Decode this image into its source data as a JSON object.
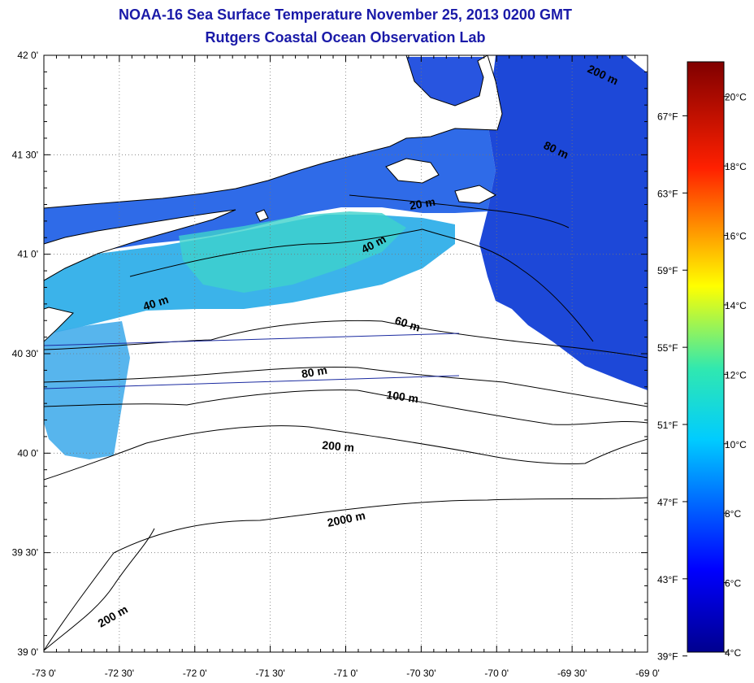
{
  "title": "NOAA-16 Sea Surface Temperature November 25, 2013 0200 GMT",
  "subtitle": "Rutgers Coastal Ocean Observation Lab",
  "map": {
    "lon_range": [
      -73.0,
      -69.0
    ],
    "lat_range": [
      39.0,
      42.0
    ],
    "lon_ticks": [
      {
        "value": -73.0,
        "label": "-73 0'"
      },
      {
        "value": -72.5,
        "label": "-72 30'"
      },
      {
        "value": -72.0,
        "label": "-72 0'"
      },
      {
        "value": -71.5,
        "label": "-71 30'"
      },
      {
        "value": -71.0,
        "label": "-71 0'"
      },
      {
        "value": -70.5,
        "label": "-70 30'"
      },
      {
        "value": -70.0,
        "label": "-70 0'"
      },
      {
        "value": -69.5,
        "label": "-69 30'"
      },
      {
        "value": -69.0,
        "label": "-69 0'"
      }
    ],
    "lat_ticks": [
      {
        "value": 42.0,
        "label": "42 0'"
      },
      {
        "value": 41.5,
        "label": "41 30'"
      },
      {
        "value": 41.0,
        "label": "41 0'"
      },
      {
        "value": 40.5,
        "label": "40 30'"
      },
      {
        "value": 40.0,
        "label": "40 0'"
      },
      {
        "value": 39.5,
        "label": "39 30'"
      },
      {
        "value": 39.0,
        "label": "39 0'"
      }
    ],
    "grid": "dotted",
    "contour_labels": [
      "20 m",
      "40 m",
      "40 m",
      "60 m",
      "80 m",
      "80 m",
      "100 m",
      "200 m",
      "200 m",
      "2000 m",
      "200 m"
    ]
  },
  "colorbar": {
    "range_c": [
      4,
      21
    ],
    "celsius_ticks": [
      {
        "value": 20,
        "label": "20°C"
      },
      {
        "value": 18,
        "label": "18°C"
      },
      {
        "value": 16,
        "label": "16°C"
      },
      {
        "value": 14,
        "label": "14°C"
      },
      {
        "value": 12,
        "label": "12°C"
      },
      {
        "value": 10,
        "label": "10°C"
      },
      {
        "value": 8,
        "label": "8°C"
      },
      {
        "value": 6,
        "label": "6°C"
      },
      {
        "value": 4,
        "label": "4°C"
      }
    ],
    "fahrenheit_ticks": [
      {
        "value": 67,
        "label": "67°F"
      },
      {
        "value": 63,
        "label": "63°F"
      },
      {
        "value": 59,
        "label": "59°F"
      },
      {
        "value": 55,
        "label": "55°F"
      },
      {
        "value": 51,
        "label": "51°F"
      },
      {
        "value": 47,
        "label": "47°F"
      },
      {
        "value": 43,
        "label": "43°F"
      },
      {
        "value": 39,
        "label": "39°F"
      }
    ]
  },
  "colors": {
    "title": "#1a1aa8",
    "land": "#ffffff",
    "cold": "#1a4fe0",
    "mid": "#3aa8f0",
    "warm": "#40d8c8"
  }
}
